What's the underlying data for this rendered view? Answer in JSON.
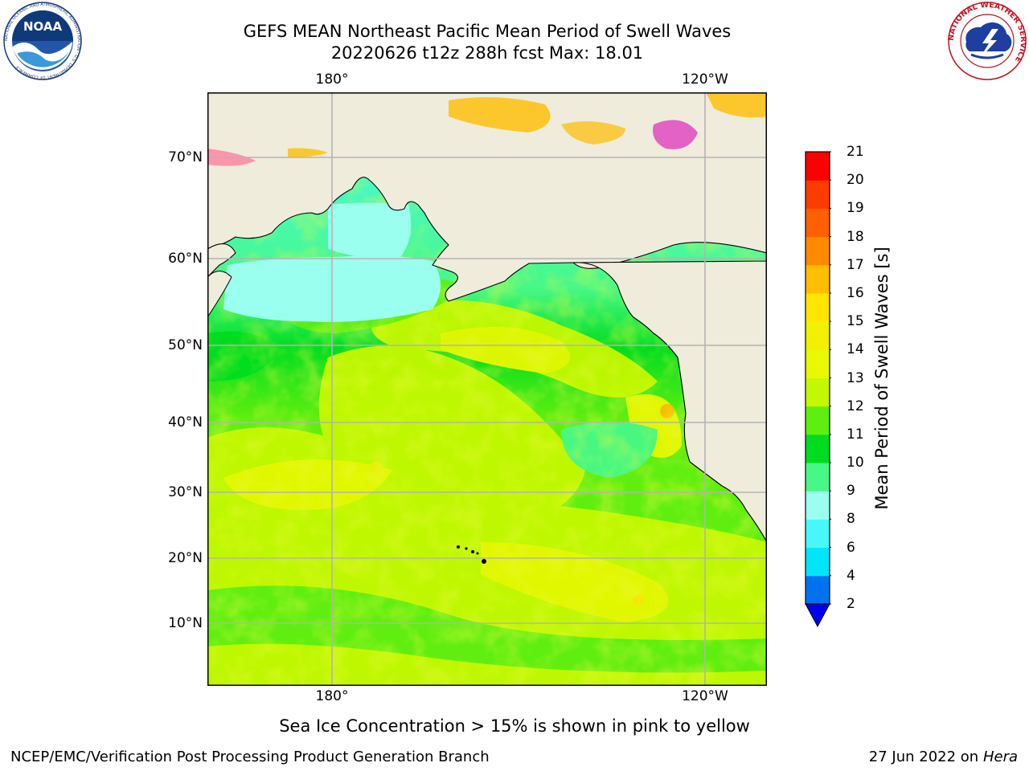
{
  "header": {
    "title_line1": "GEFS MEAN Northeast Pacific Mean Period of Swell Waves",
    "title_line2": "20220626 t12z 288h fcst   Max: 18.01"
  },
  "logos": {
    "left": "NOAA",
    "left_ring_text": "NATIONAL OCEANIC AND ATMOSPHERIC ADMINISTRATION · U.S. DEPARTMENT OF COMMERCE",
    "right_ring_text": "NATIONAL WEATHER SERVICE"
  },
  "map": {
    "lon_labels": [
      "180°",
      "120°W"
    ],
    "lat_labels": [
      "70°N",
      "60°N",
      "50°N",
      "40°N",
      "30°N",
      "20°N",
      "10°N"
    ],
    "land_color": "#efecdc",
    "grid_color": "#b3b3b3"
  },
  "colorbar": {
    "title": "Mean Period of Swell Waves [s]",
    "ticks": [
      "21",
      "20",
      "19",
      "18",
      "17",
      "16",
      "15",
      "14",
      "13",
      "12",
      "11",
      "10",
      "9",
      "8",
      "6",
      "4",
      "2"
    ],
    "colors_bottom_to_top": [
      "#0072f0",
      "#00e6f8",
      "#48f8f8",
      "#9bfff0",
      "#48f886",
      "#00dd20",
      "#60ee10",
      "#c4f800",
      "#e8f800",
      "#f0f000",
      "#ffe600",
      "#ffbe00",
      "#ff8a00",
      "#ff6000",
      "#ff3c00",
      "#ff0000"
    ],
    "extend_color": "#0000ee"
  },
  "caption": "Sea Ice Concentration > 15% is shown in pink to yellow",
  "footer": {
    "left": "NCEP/EMC/Verification Post Processing Product Generation Branch",
    "right_date": "27 Jun 2022 on",
    "right_host": "Hera"
  }
}
